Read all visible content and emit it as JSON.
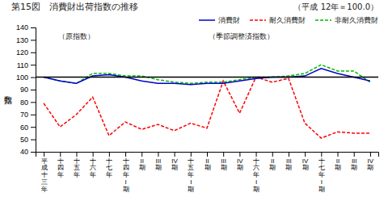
{
  "chart_data": {
    "type": "line",
    "title": "第15図　消費財出荷指数の推移",
    "subtitle": "（平成 12年＝100.0）",
    "ylabel": "指数",
    "annotations": [
      "（原指数）",
      "（季節調整済指数）"
    ],
    "categories": [
      "平\n成\n十\n三\n年",
      "十\n四\n年",
      "十\n五\n年",
      "十\n六\n年",
      "十\n七\n年",
      "十\n四\n年\nI\n期",
      "II\n期",
      "III\n期",
      "IV\n期",
      "十\n五\n年\nI\n期",
      "II\n期",
      "III\n期",
      "IV\n期",
      "十\n六\n年\nI\n期",
      "II\n期",
      "III\n期",
      "IV\n期",
      "十\n七\n年\nI\n期",
      "II\n期",
      "III\n期",
      "IV\n期"
    ],
    "series": [
      {
        "name": "消費財",
        "color": "#0000cc",
        "line_style": "solid",
        "values": [
          100,
          97,
          95,
          101,
          102,
          100,
          97,
          95,
          95,
          94,
          95,
          95,
          97,
          99,
          100,
          100,
          101,
          107,
          103,
          100,
          97
        ]
      },
      {
        "name": "耐久消費財",
        "color": "#ff0000",
        "line_style": "dashed",
        "values": [
          79,
          60,
          70,
          84,
          53,
          64,
          58,
          62,
          57,
          63,
          59,
          97,
          71,
          100,
          96,
          99,
          63,
          51,
          56,
          55,
          55
        ]
      },
      {
        "name": "非耐久消費財",
        "color": "#00bb00",
        "line_style": "dashed",
        "values": [
          100,
          97,
          95,
          103,
          103,
          101,
          101,
          98,
          96,
          95,
          96,
          96,
          98,
          100,
          100,
          101,
          103,
          110,
          105,
          105,
          96
        ]
      }
    ],
    "reference_line": 100,
    "ylim": [
      40,
      140
    ],
    "yticks": [
      40,
      50,
      60,
      70,
      80,
      90,
      100,
      110,
      120,
      130,
      140
    ],
    "grid": false,
    "legend": "upper right"
  }
}
